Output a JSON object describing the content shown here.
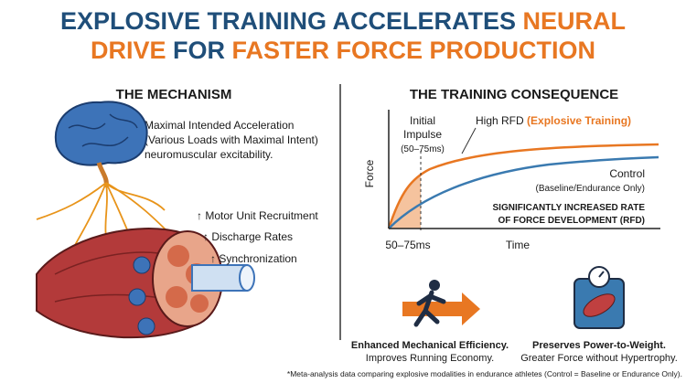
{
  "header": {
    "title_line1": [
      "EXPLOSIVE TRAINING ACCELERATES",
      "NEURAL"
    ],
    "title_line2": [
      "DRIVE",
      "FOR",
      "FASTER FORCE PRODUCTION"
    ]
  },
  "mechanism": {
    "heading": "THE MECHANISM",
    "description": [
      "Maximal Intended Acceleration",
      "(Various Loads with Maximal Intent)",
      "neuromuscular excitability."
    ],
    "effects": [
      "↑ Motor Unit Recruitment",
      "↑ Discharge Rates",
      "↑ Synchronization"
    ]
  },
  "consequence": {
    "heading": "THE TRAINING CONSEQUENCE",
    "graph": {
      "y_label": "Force",
      "x_label": "Time",
      "x_marker": "50–75ms",
      "impulse_label": [
        "Initial",
        "Impulse",
        "(50–75ms)"
      ],
      "high_rfd": [
        "High RFD",
        "(Explosive Training)"
      ],
      "control": [
        "Control",
        "(Baseline/Endurance Only)"
      ],
      "callout": [
        "SIGNIFICANTLY INCREASED RATE",
        "OF FORCE DEVELOPMENT (RFD)"
      ]
    }
  },
  "benefits": [
    {
      "title": "Enhanced Mechanical Efficiency.",
      "text": "Improves Running Economy."
    },
    {
      "title": "Preserves Power-to-Weight.",
      "text": "Greater Force without Hypertrophy."
    }
  ],
  "footnote": "*Meta-analysis data comparing explosive modalities in endurance athletes (Control = Baseline or Endurance Only)."
}
